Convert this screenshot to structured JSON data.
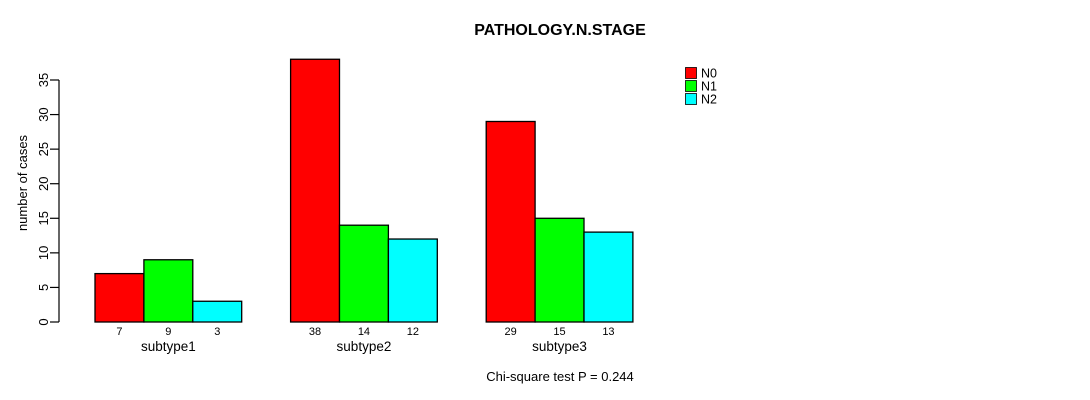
{
  "title": "PATHOLOGY.N.STAGE",
  "caption": "Chi-square test P = 0.244",
  "colors": {
    "background": "#FFFFFF",
    "axis": "#000000",
    "n0": "#FF0000",
    "n1": "#00FF00",
    "n2": "#00FFFF"
  },
  "chart_data": {
    "type": "bar",
    "title": "PATHOLOGY.N.STAGE",
    "xlabel": "",
    "ylabel": "number of cases",
    "categories": [
      "subtype1",
      "subtype2",
      "subtype3"
    ],
    "series": [
      {
        "name": "N0",
        "color": "#FF0000",
        "values": [
          7,
          38,
          29
        ]
      },
      {
        "name": "N1",
        "color": "#00FF00",
        "values": [
          9,
          14,
          15
        ]
      },
      {
        "name": "N2",
        "color": "#00FFFF",
        "values": [
          3,
          12,
          13
        ]
      }
    ],
    "yticks": [
      0,
      5,
      10,
      15,
      20,
      25,
      30,
      35
    ],
    "ylim": [
      0,
      35
    ],
    "grid": false,
    "legend_position": "top-right",
    "bar_value_labels_shown": true,
    "footnote": "Chi-square test P = 0.244"
  }
}
